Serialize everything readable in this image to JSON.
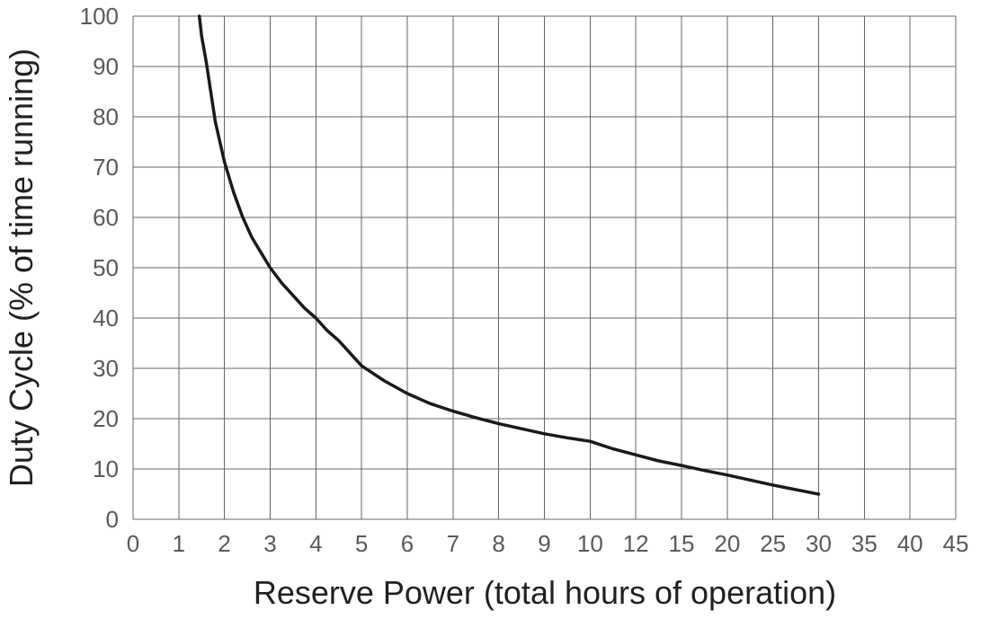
{
  "chart_data": {
    "type": "line",
    "title": "",
    "xlabel": "Reserve Power (total hours of operation)",
    "ylabel": "Duty Cycle (% of time running)",
    "x_ticks": [
      0,
      1,
      2,
      3,
      4,
      5,
      6,
      7,
      8,
      9,
      10,
      12,
      15,
      20,
      25,
      30,
      35,
      40,
      45
    ],
    "x_scale": "equal-spaced-ticks",
    "y_ticks": [
      0,
      10,
      20,
      30,
      40,
      50,
      60,
      70,
      80,
      90,
      100
    ],
    "ylim": [
      0,
      100
    ],
    "grid": true,
    "legend": "none",
    "series": [
      {
        "name": "duty-cycle-curve",
        "points": [
          [
            1.45,
            100
          ],
          [
            1.5,
            96
          ],
          [
            1.6,
            91
          ],
          [
            1.7,
            85
          ],
          [
            1.8,
            79
          ],
          [
            1.9,
            75
          ],
          [
            2,
            71
          ],
          [
            2.2,
            65
          ],
          [
            2.4,
            60
          ],
          [
            2.6,
            56
          ],
          [
            2.8,
            53
          ],
          [
            3,
            50
          ],
          [
            3.25,
            47
          ],
          [
            3.5,
            44.5
          ],
          [
            3.75,
            42
          ],
          [
            4,
            40
          ],
          [
            4.25,
            37.5
          ],
          [
            4.5,
            35.5
          ],
          [
            4.75,
            33
          ],
          [
            5,
            30.5
          ],
          [
            5.5,
            27.5
          ],
          [
            6,
            25
          ],
          [
            6.5,
            23
          ],
          [
            7,
            21.5
          ],
          [
            7.5,
            20.2
          ],
          [
            8,
            19
          ],
          [
            8.5,
            18
          ],
          [
            9,
            17
          ],
          [
            9.5,
            16.2
          ],
          [
            10,
            15.5
          ],
          [
            11,
            14
          ],
          [
            12,
            12.8
          ],
          [
            13.5,
            11.6
          ],
          [
            15,
            10.7
          ],
          [
            17.5,
            9.7
          ],
          [
            20,
            8.8
          ],
          [
            22.5,
            7.8
          ],
          [
            25,
            6.8
          ],
          [
            27.5,
            5.9
          ],
          [
            30,
            5
          ]
        ]
      }
    ],
    "colors": {
      "grid": "#636466",
      "curve": "#1a1a1a",
      "tick_text": "#58595b",
      "title_text": "#231f20",
      "background": "#ffffff"
    }
  }
}
